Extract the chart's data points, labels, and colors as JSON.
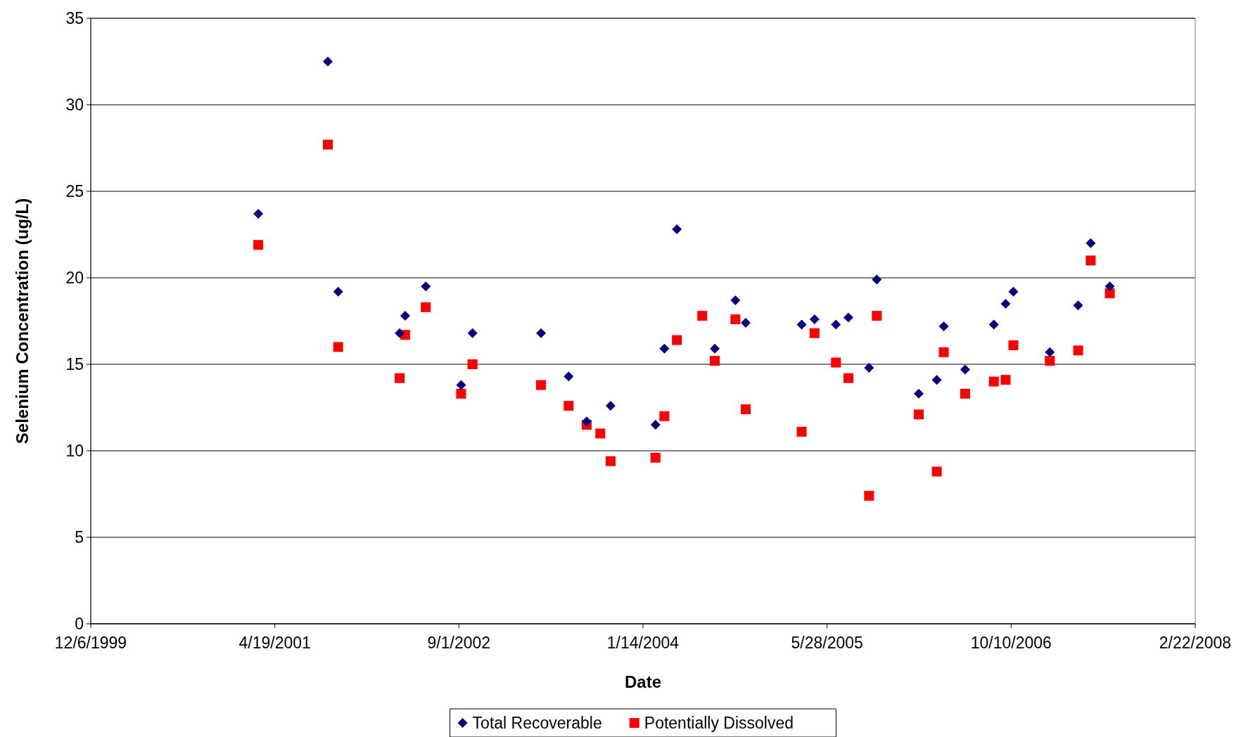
{
  "chart_data": {
    "type": "scatter",
    "xlabel": "Date",
    "ylabel": "Selenium Concentration (ug/L)",
    "x": [
      "2001-03-05",
      "2001-09-10",
      "2001-10-08",
      "2002-03-24",
      "2002-04-08",
      "2002-06-03",
      "2002-09-07",
      "2002-10-08",
      "2003-04-12",
      "2003-06-26",
      "2003-08-14",
      "2003-09-20",
      "2003-10-18",
      "2004-02-17",
      "2004-03-12",
      "2004-04-15",
      "2004-06-23",
      "2004-07-27",
      "2004-09-21",
      "2004-10-19",
      "2005-03-20",
      "2005-04-24",
      "2005-06-21",
      "2005-07-25",
      "2005-09-19",
      "2005-10-10",
      "2006-02-01",
      "2006-03-22",
      "2006-04-10",
      "2006-06-07",
      "2006-08-24",
      "2006-09-25",
      "2006-10-16",
      "2007-01-23",
      "2007-04-10",
      "2007-05-14",
      "2007-07-05"
    ],
    "series": [
      {
        "name": "Total Recoverable",
        "color": "#000080",
        "marker": "diamond",
        "values": [
          23.7,
          32.5,
          19.2,
          16.8,
          17.8,
          19.5,
          13.8,
          16.8,
          16.8,
          14.3,
          11.7,
          null,
          12.6,
          11.5,
          15.9,
          22.8,
          null,
          15.9,
          18.7,
          17.4,
          17.3,
          17.6,
          17.3,
          17.7,
          14.8,
          19.9,
          13.3,
          14.1,
          17.2,
          14.7,
          17.3,
          18.5,
          19.2,
          15.7,
          18.4,
          22.0,
          19.5
        ]
      },
      {
        "name": "Potentially Dissolved",
        "color": "#ff0000",
        "marker": "square",
        "values": [
          21.9,
          27.7,
          16.0,
          14.2,
          16.7,
          18.3,
          13.3,
          15.0,
          13.8,
          12.6,
          11.5,
          11.0,
          9.4,
          9.6,
          12.0,
          16.4,
          17.8,
          15.2,
          17.6,
          12.4,
          11.1,
          16.8,
          15.1,
          14.2,
          7.4,
          17.8,
          12.1,
          8.8,
          15.7,
          13.3,
          14.0,
          14.1,
          16.1,
          15.2,
          15.8,
          21.0,
          19.1
        ]
      }
    ],
    "xlim": [
      "1999-12-06",
      "2008-02-22"
    ],
    "xticks": [
      {
        "value": "1999-12-06",
        "label": "12/6/1999"
      },
      {
        "value": "2001-04-19",
        "label": "4/19/2001"
      },
      {
        "value": "2002-09-01",
        "label": "9/1/2002"
      },
      {
        "value": "2004-01-14",
        "label": "1/14/2004"
      },
      {
        "value": "2005-05-28",
        "label": "5/28/2005"
      },
      {
        "value": "2006-10-10",
        "label": "10/10/2006"
      },
      {
        "value": "2008-02-22",
        "label": "2/22/2008"
      }
    ],
    "ylim": [
      0,
      35
    ],
    "yticks": [
      0,
      5,
      10,
      15,
      20,
      25,
      30,
      35
    ],
    "grid": "y",
    "legend": "bottom"
  }
}
